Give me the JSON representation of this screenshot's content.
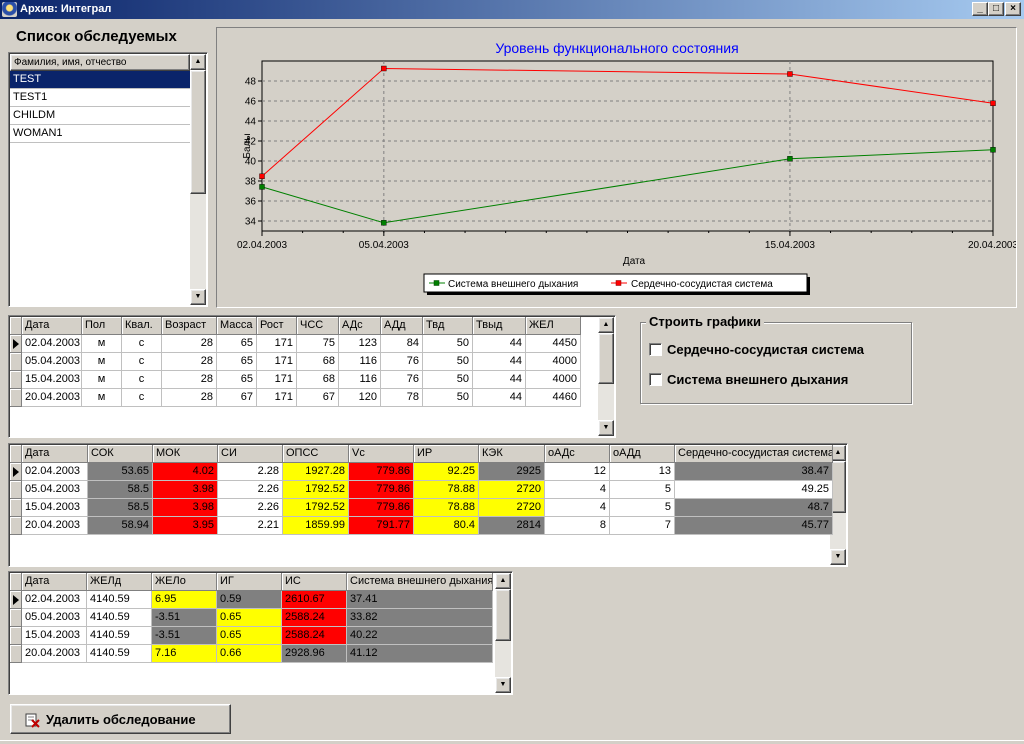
{
  "window": {
    "title": "Архив: Интеграл",
    "minimize_glyph": "_",
    "maximize_glyph": "□",
    "close_glyph": "×"
  },
  "patients": {
    "title": "Список обследуемых",
    "column_header": "Фамилия, имя, отчество",
    "items": [
      "TEST",
      "TEST1",
      "CHILDM",
      "WOMAN1"
    ],
    "selected_index": 0
  },
  "chart_data": {
    "type": "line",
    "title": "Уровень функционального состояния",
    "xlabel": "Дата",
    "ylabel": "Балы",
    "x": [
      "02.04.2003",
      "05.04.2003",
      "15.04.2003",
      "20.04.2003"
    ],
    "x_days": [
      2,
      5,
      15,
      20
    ],
    "xlim_days": [
      2,
      20
    ],
    "ylim": [
      33,
      50
    ],
    "yticks": [
      34,
      36,
      38,
      40,
      42,
      44,
      46,
      48
    ],
    "grid": true,
    "legend_position": "bottom",
    "series": [
      {
        "name": "Система внешнего дыхания",
        "color": "#008000",
        "values": [
          37.41,
          33.82,
          40.22,
          41.12
        ]
      },
      {
        "name": "Сердечно-сосудистая система",
        "color": "#ff0000",
        "values": [
          38.47,
          49.25,
          48.7,
          45.77
        ]
      }
    ]
  },
  "options": {
    "title": "Строить графики",
    "checkboxes": [
      {
        "label": "Сердечно-сосудистая система",
        "checked": false
      },
      {
        "label": "Система внешнего дыхания",
        "checked": false
      }
    ]
  },
  "grid1": {
    "columns": [
      "Дата",
      "Пол",
      "Квал.",
      "Возраст",
      "Масса",
      "Рост",
      "ЧСС",
      "АДс",
      "АДд",
      "Твд",
      "Твыд",
      "ЖЕЛ"
    ],
    "rows": [
      [
        "02.04.2003",
        "м",
        "с",
        "28",
        "65",
        "171",
        "75",
        "123",
        "84",
        "50",
        "44",
        "4450"
      ],
      [
        "05.04.2003",
        "м",
        "с",
        "28",
        "65",
        "171",
        "68",
        "116",
        "76",
        "50",
        "44",
        "4000"
      ],
      [
        "15.04.2003",
        "м",
        "с",
        "28",
        "65",
        "171",
        "68",
        "116",
        "76",
        "50",
        "44",
        "4000"
      ],
      [
        "20.04.2003",
        "м",
        "с",
        "28",
        "67",
        "171",
        "67",
        "120",
        "78",
        "50",
        "44",
        "4460"
      ]
    ]
  },
  "grid2": {
    "columns": [
      "Дата",
      "СОК",
      "МОК",
      "СИ",
      "ОПСС",
      "Vc",
      "ИР",
      "КЭК",
      "оАДс",
      "оАДд",
      "Сердечно-сосудистая система"
    ],
    "rows": [
      [
        "02.04.2003",
        "53.65",
        "4.02",
        "2.28",
        "1927.28",
        "779.86",
        "92.25",
        "2925",
        "12",
        "13",
        "38.47"
      ],
      [
        "05.04.2003",
        "58.5",
        "3.98",
        "2.26",
        "1792.52",
        "779.86",
        "78.88",
        "2720",
        "4",
        "5",
        "49.25"
      ],
      [
        "15.04.2003",
        "58.5",
        "3.98",
        "2.26",
        "1792.52",
        "779.86",
        "78.88",
        "2720",
        "4",
        "5",
        "48.7"
      ],
      [
        "20.04.2003",
        "58.94",
        "3.95",
        "2.21",
        "1859.99",
        "791.77",
        "80.4",
        "2814",
        "8",
        "7",
        "45.77"
      ]
    ]
  },
  "grid3": {
    "columns": [
      "Дата",
      "ЖЕЛд",
      "ЖЕЛо",
      "ИГ",
      "ИС",
      "Система внешнего дыхания"
    ],
    "rows": [
      [
        "02.04.2003",
        "4140.59",
        "6.95",
        "0.59",
        "2610.67",
        "37.41"
      ],
      [
        "05.04.2003",
        "4140.59",
        "-3.51",
        "0.65",
        "2588.24",
        "33.82"
      ],
      [
        "15.04.2003",
        "4140.59",
        "-3.51",
        "0.65",
        "2588.24",
        "40.22"
      ],
      [
        "20.04.2003",
        "4140.59",
        "7.16",
        "0.66",
        "2928.96",
        "41.12"
      ]
    ]
  },
  "cell_colors": {
    "white": "#ffffff",
    "gray": "#808080",
    "red": "#ff0000",
    "yellow": "#ffff00"
  },
  "delete_button": {
    "label": "Удалить обследование",
    "icon": "delete-record-icon"
  }
}
